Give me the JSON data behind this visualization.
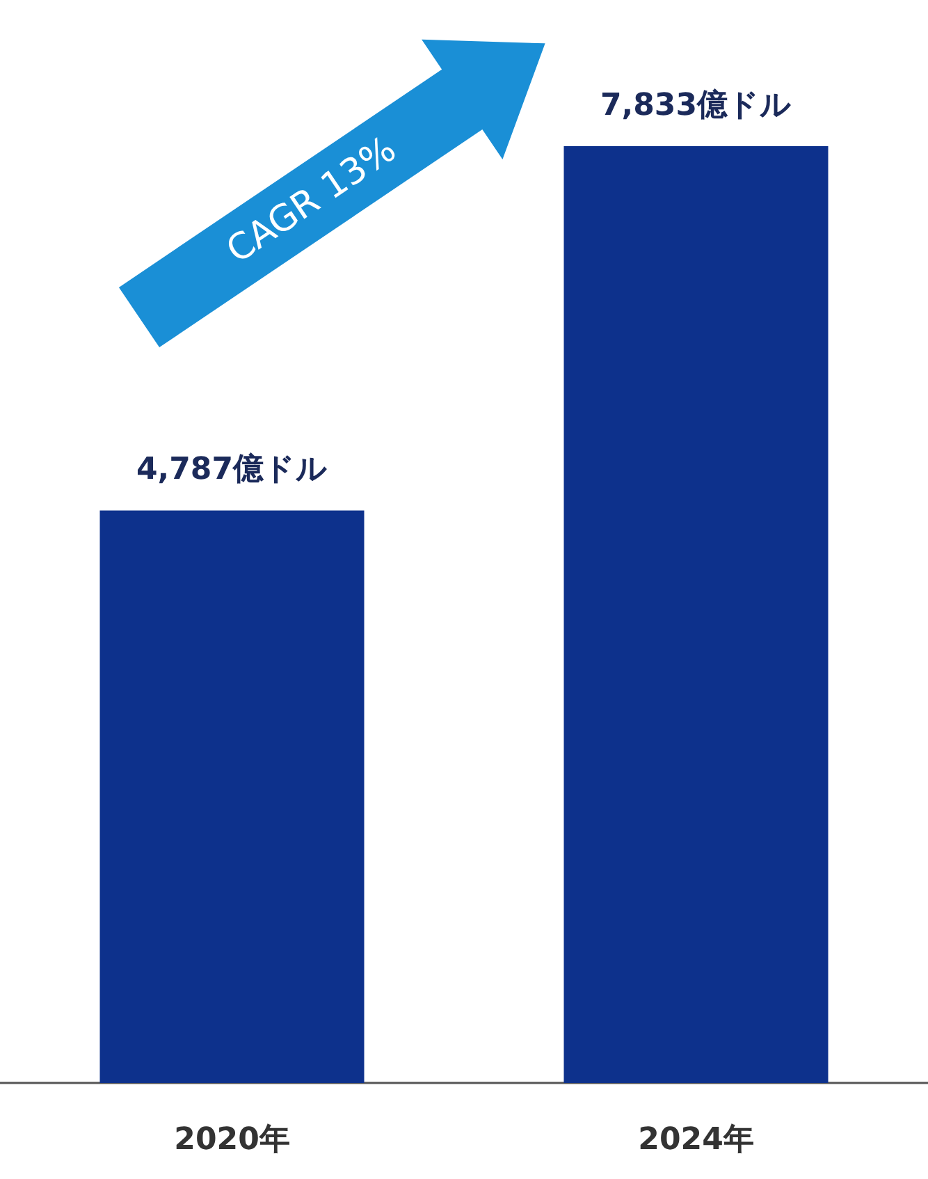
{
  "chart_data": {
    "type": "bar",
    "categories": [
      "2020年",
      "2024年"
    ],
    "values": [
      4787,
      7833
    ],
    "value_labels": [
      "4,787億ドル",
      "7,833億ドル"
    ],
    "color": "#0d318c",
    "annotations": [
      "CAGR 13%"
    ]
  }
}
